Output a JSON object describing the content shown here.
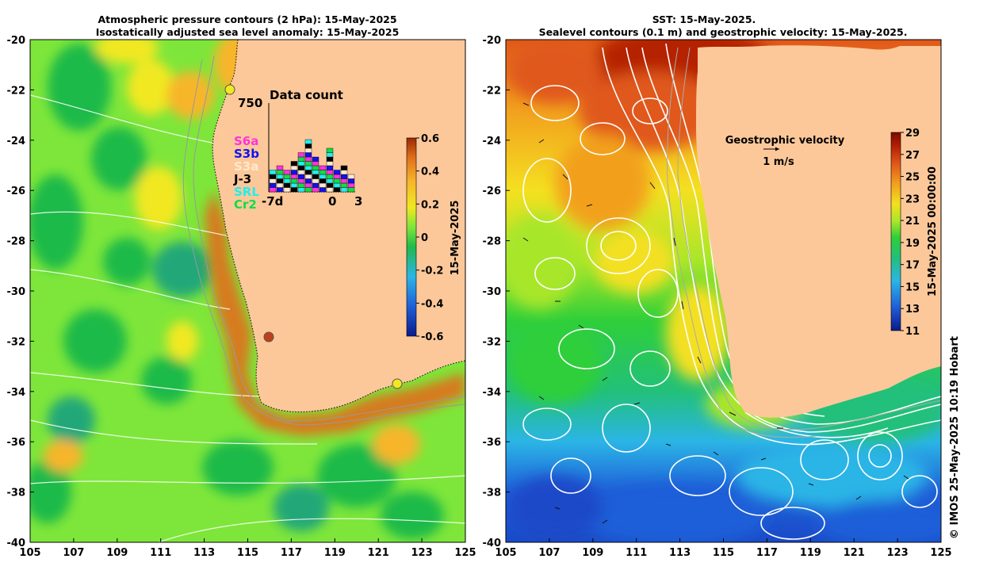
{
  "left": {
    "title_line1": "Atmospheric pressure contours (2 hPa): 15-May-2025",
    "title_line2": "Isostatically adjusted sea level anomaly: 15-May-2025",
    "colorbar_ticks": [
      "0.6",
      "0.4",
      "0.2",
      "0",
      "-0.2",
      "-0.4",
      "-0.6"
    ],
    "colorbar_label": "15-May-2025",
    "data_count": {
      "title": "Data count",
      "ymax_label": "750",
      "x_labels": [
        "-7d",
        "0",
        "3"
      ],
      "legend": [
        {
          "name": "S6a",
          "color": "#ff33dd"
        },
        {
          "name": "S3b",
          "color": "#1111ee"
        },
        {
          "name": "S3a",
          "color": "#ffe9cc"
        },
        {
          "name": "J-3",
          "color": "#000000"
        },
        {
          "name": "SRL",
          "color": "#22eeee"
        },
        {
          "name": "Cr2",
          "color": "#11dd44"
        }
      ]
    }
  },
  "right": {
    "title_line1": "SST: 15-May-2025.",
    "title_line2": "Sealevel contours (0.1 m) and geostrophic velocity: 15-May-2025.",
    "velocity_title": "Geostrophic velocity",
    "velocity_scale": "1 m/s",
    "colorbar_ticks": [
      "29",
      "27",
      "25",
      "23",
      "21",
      "19",
      "17",
      "15",
      "13",
      "11"
    ],
    "colorbar_label": "15-May-2025 00:00:00"
  },
  "axes": {
    "x_ticks": [
      "105",
      "107",
      "109",
      "111",
      "113",
      "115",
      "117",
      "119",
      "121",
      "123",
      "125"
    ],
    "y_ticks": [
      "-20",
      "-22",
      "-24",
      "-26",
      "-28",
      "-30",
      "-32",
      "-34",
      "-36",
      "-38",
      "-40"
    ]
  },
  "credit": "© IMOS 25-May-2025 10:19 Hobart",
  "colors": {
    "land": "#fcc89a",
    "sla_scale": [
      "#0a1b8c",
      "#1f5fd8",
      "#2bb5e6",
      "#1fba4a",
      "#7ee63a",
      "#f1e820",
      "#f7b52a",
      "#e0701a",
      "#9a2a06"
    ],
    "sst_scale": [
      "#0a1b8c",
      "#1f5fd8",
      "#2bb5e6",
      "#22c07a",
      "#2fcf3a",
      "#a8e62a",
      "#f4e020",
      "#f2a01e",
      "#e0581a",
      "#b52006",
      "#7a0a02"
    ]
  }
}
